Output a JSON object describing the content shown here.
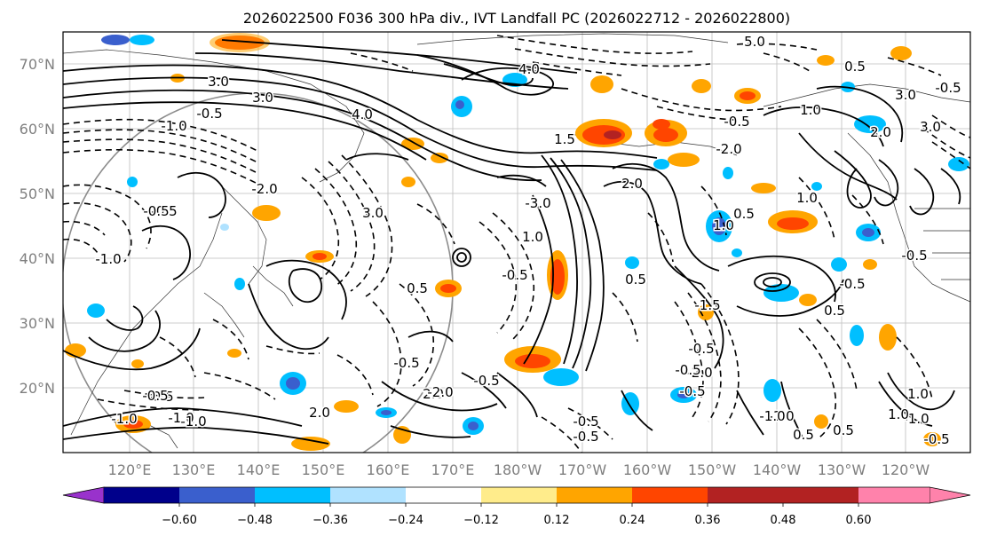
{
  "title": "2026022500 F036 300 hPa div., IVT Landfall PC (2026022712 - 2026022800)",
  "lat_labels": [
    "70°N",
    "60°N",
    "50°N",
    "40°N",
    "30°N",
    "20°N"
  ],
  "lon_labels": [
    "120°E",
    "130°E",
    "140°E",
    "150°E",
    "160°E",
    "170°E",
    "180°W",
    "170°W",
    "160°W",
    "150°W",
    "140°W",
    "130°W",
    "120°W"
  ],
  "colorbar": {
    "colors": [
      "#9932cc",
      "#00008b",
      "#3a5fcd",
      "#00bfff",
      "#b0e2ff",
      "#ffffff",
      "#ffec8b",
      "#ffa500",
      "#ff4500",
      "#b22222",
      "#ff82ab"
    ],
    "tick_labels": [
      "−0.60",
      "−0.48",
      "−0.36",
      "−0.24",
      "−0.12",
      "0.12",
      "0.24",
      "0.36",
      "0.48",
      "0.60"
    ]
  },
  "contour_labels": [
    "3.0",
    "3.0",
    "4.0",
    "5.0",
    "4.0",
    "0.5",
    "2.0",
    "-0.5",
    "-1.0",
    "-0.5",
    "1.0",
    "2.0",
    "3.0",
    "3.0",
    "-0.5",
    "-0.5",
    "3.0",
    "-3.0",
    "-2.0",
    "1.5",
    "-2.0",
    "2.0",
    "1.0",
    "0.5",
    "-0.5",
    "-0.5",
    "-1.0",
    "0.5",
    "-0.5",
    "-1.0",
    "-0.5",
    "-1.0",
    "1.0",
    "-1.5",
    "-2.0",
    "-0.5",
    "1.0",
    "-0.5",
    "-1.0",
    "0.5",
    "-2.0",
    "-1.0",
    "-0.5",
    "-0.5",
    "0.5",
    "0.5",
    "-0.5",
    "1.0",
    "0.5",
    "-0.5",
    "-0.5",
    "-1.0",
    "0.5",
    "-0.5",
    "1.0",
    "-0.5",
    "-0.5",
    "2.0",
    "-1.0"
  ]
}
